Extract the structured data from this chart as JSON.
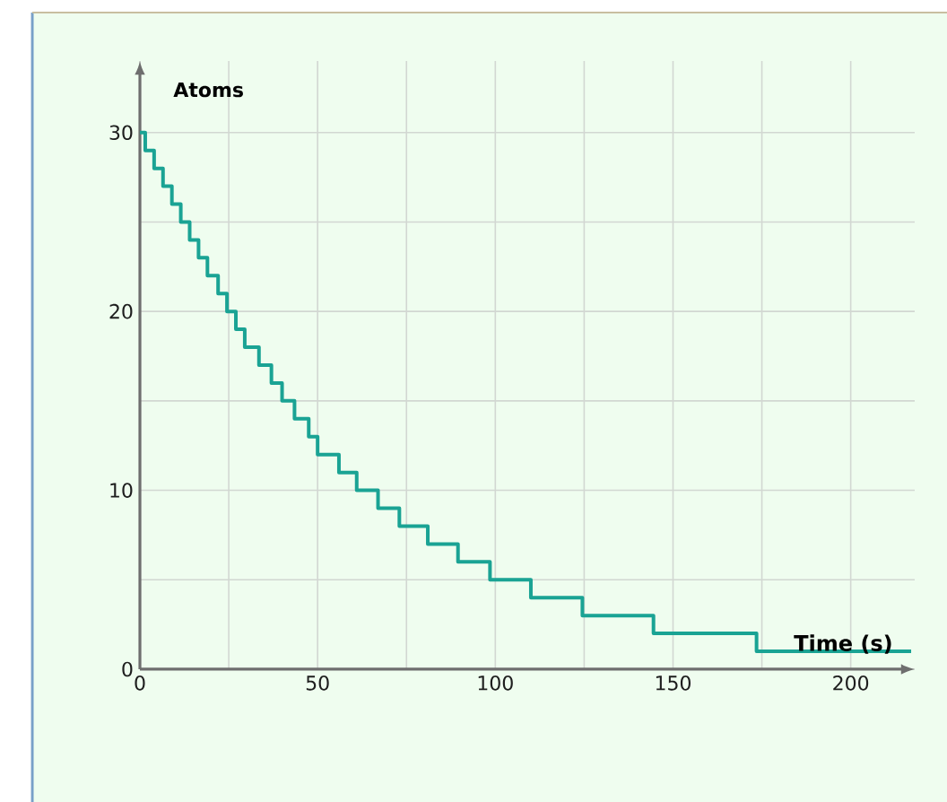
{
  "chart_data": {
    "type": "step",
    "xlabel": "Time (s)",
    "ylabel": "Atoms",
    "x": [
      0,
      1.5,
      4,
      6.5,
      9,
      11.5,
      14,
      16.5,
      19,
      22,
      24.5,
      27,
      29.5,
      33.5,
      37,
      40,
      43.5,
      47.5,
      50,
      56,
      61,
      67,
      73,
      81,
      89.5,
      98.5,
      110,
      124.5,
      144.5,
      173.5,
      217
    ],
    "series": [
      {
        "color": "#1aa394",
        "values": [
          30,
          29,
          28,
          27,
          26,
          25,
          24,
          23,
          22,
          21,
          20,
          19,
          18,
          17,
          16,
          15,
          14,
          13,
          12,
          11,
          10,
          9,
          8,
          7,
          6,
          5,
          4,
          3,
          2,
          1,
          1
        ]
      }
    ],
    "xlim": [
      0,
      218
    ],
    "ylim": [
      0,
      34
    ],
    "xticks": [
      0,
      {
        "value": 25,
        "label": null
      },
      50,
      {
        "value": 75,
        "label": null
      },
      100,
      {
        "value": 125,
        "label": null
      },
      150,
      {
        "value": 175,
        "label": null
      },
      200
    ],
    "yticks": [
      0,
      {
        "value": 5,
        "label": null
      },
      10,
      {
        "value": 15,
        "label": null
      },
      20,
      {
        "value": 25,
        "label": null
      },
      30
    ],
    "grid": true,
    "line_style": "solid",
    "marker": "none"
  }
}
